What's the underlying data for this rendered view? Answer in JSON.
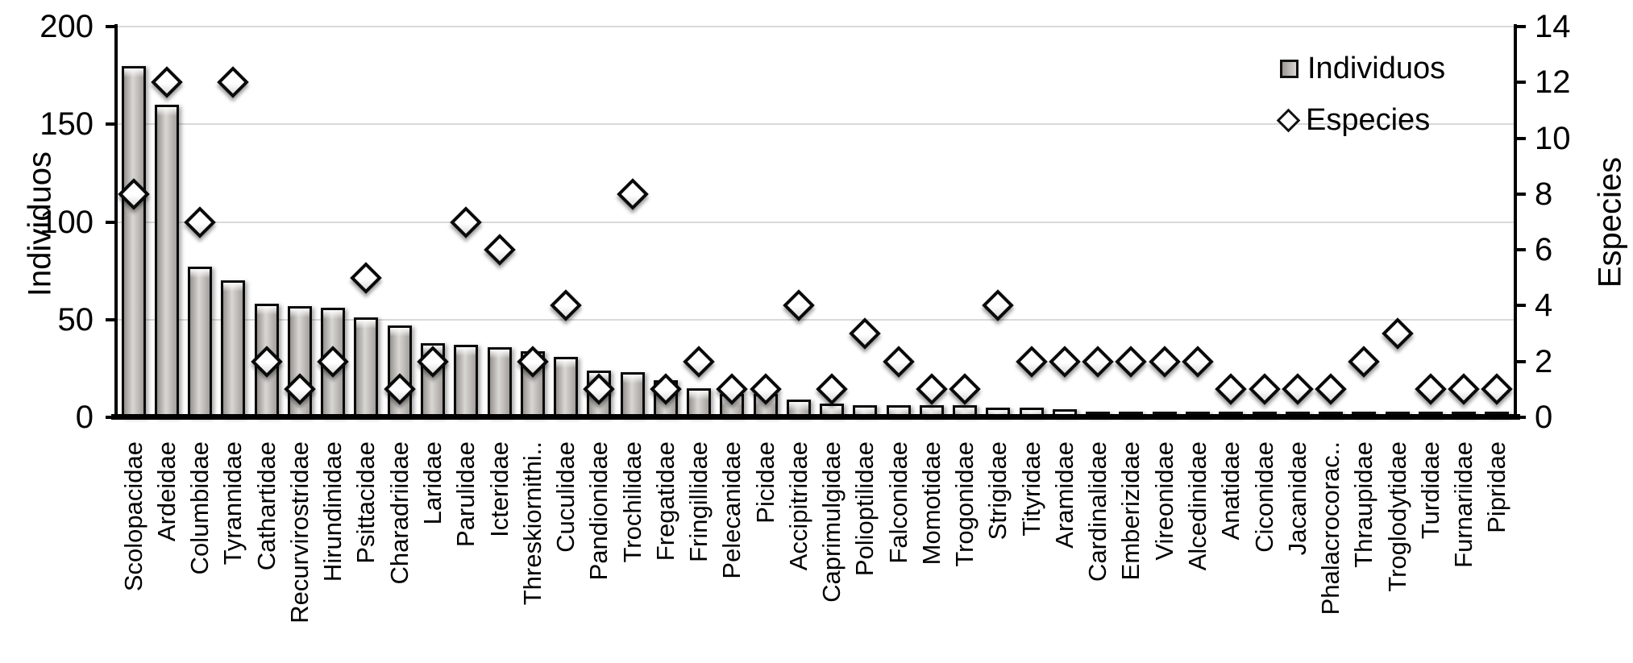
{
  "chart_data": {
    "type": "combo-bar-scatter",
    "title": "",
    "categories": [
      "Scolopacidae",
      "Ardeidae",
      "Columbidae",
      "Tyrannidae",
      "Cathartidae",
      "Recurvirostridae",
      "Hirundinidae",
      "Psittacidae",
      "Charadriidae",
      "Laridae",
      "Parulidae",
      "Icteridae",
      "Threskiornithi..",
      "Cuculidae",
      "Pandionidae",
      "Trochilidae",
      "Fregatidae",
      "Fringillidae",
      "Pelecanidae",
      "Picidae",
      "Accipitridae",
      "Caprimulgidae",
      "Polioptilidae",
      "Falconidae",
      "Momotidae",
      "Trogonidae",
      "Strigidae",
      "Tityridae",
      "Aramidae",
      "Cardinalidae",
      "Emberizidae",
      "Vireonidae",
      "Alcedinidae",
      "Anatidae",
      "Ciconidae",
      "Jacanidae",
      "Phalacrocorac..",
      "Thraupidae",
      "Troglodytidae",
      "Turdidae",
      "Furnariidae",
      "Pipridae"
    ],
    "series": [
      {
        "name": "Individuos",
        "type": "bar",
        "axis": "left",
        "values": [
          180,
          160,
          77,
          70,
          58,
          57,
          56,
          51,
          47,
          38,
          37,
          36,
          34,
          31,
          24,
          23,
          19,
          15,
          12,
          12,
          9,
          7,
          6,
          6,
          6,
          6,
          5,
          5,
          4,
          3,
          3,
          2,
          2,
          1,
          1,
          1,
          1,
          1,
          1,
          1,
          1,
          1
        ]
      },
      {
        "name": "Especies",
        "type": "scatter",
        "marker": "diamond",
        "axis": "right",
        "values": [
          8,
          12,
          7,
          12,
          2,
          1,
          2,
          5,
          1,
          2,
          7,
          6,
          2,
          4,
          1,
          8,
          1,
          2,
          1,
          1,
          4,
          1,
          3,
          2,
          1,
          1,
          4,
          2,
          2,
          2,
          2,
          2,
          2,
          1,
          1,
          1,
          1,
          2,
          3,
          1,
          1,
          1
        ]
      }
    ],
    "left_axis": {
      "title": "Individuos",
      "min": 0,
      "max": 200,
      "ticks": [
        0,
        50,
        100,
        150,
        200
      ]
    },
    "right_axis": {
      "title": "Especies",
      "min": 0,
      "max": 14,
      "ticks": [
        0,
        2,
        4,
        6,
        8,
        10,
        12,
        14
      ]
    },
    "legend": [
      {
        "label": "Individuos",
        "marker": "square"
      },
      {
        "label": "Especies",
        "marker": "diamond"
      }
    ],
    "layout": {
      "grid": "horizontal",
      "legend_position": "top-right",
      "bar_color": "#b3b0ad",
      "marker_fill": "#ffffff",
      "line_color": "#000000",
      "gridline_color": "#d9d9d9"
    }
  }
}
